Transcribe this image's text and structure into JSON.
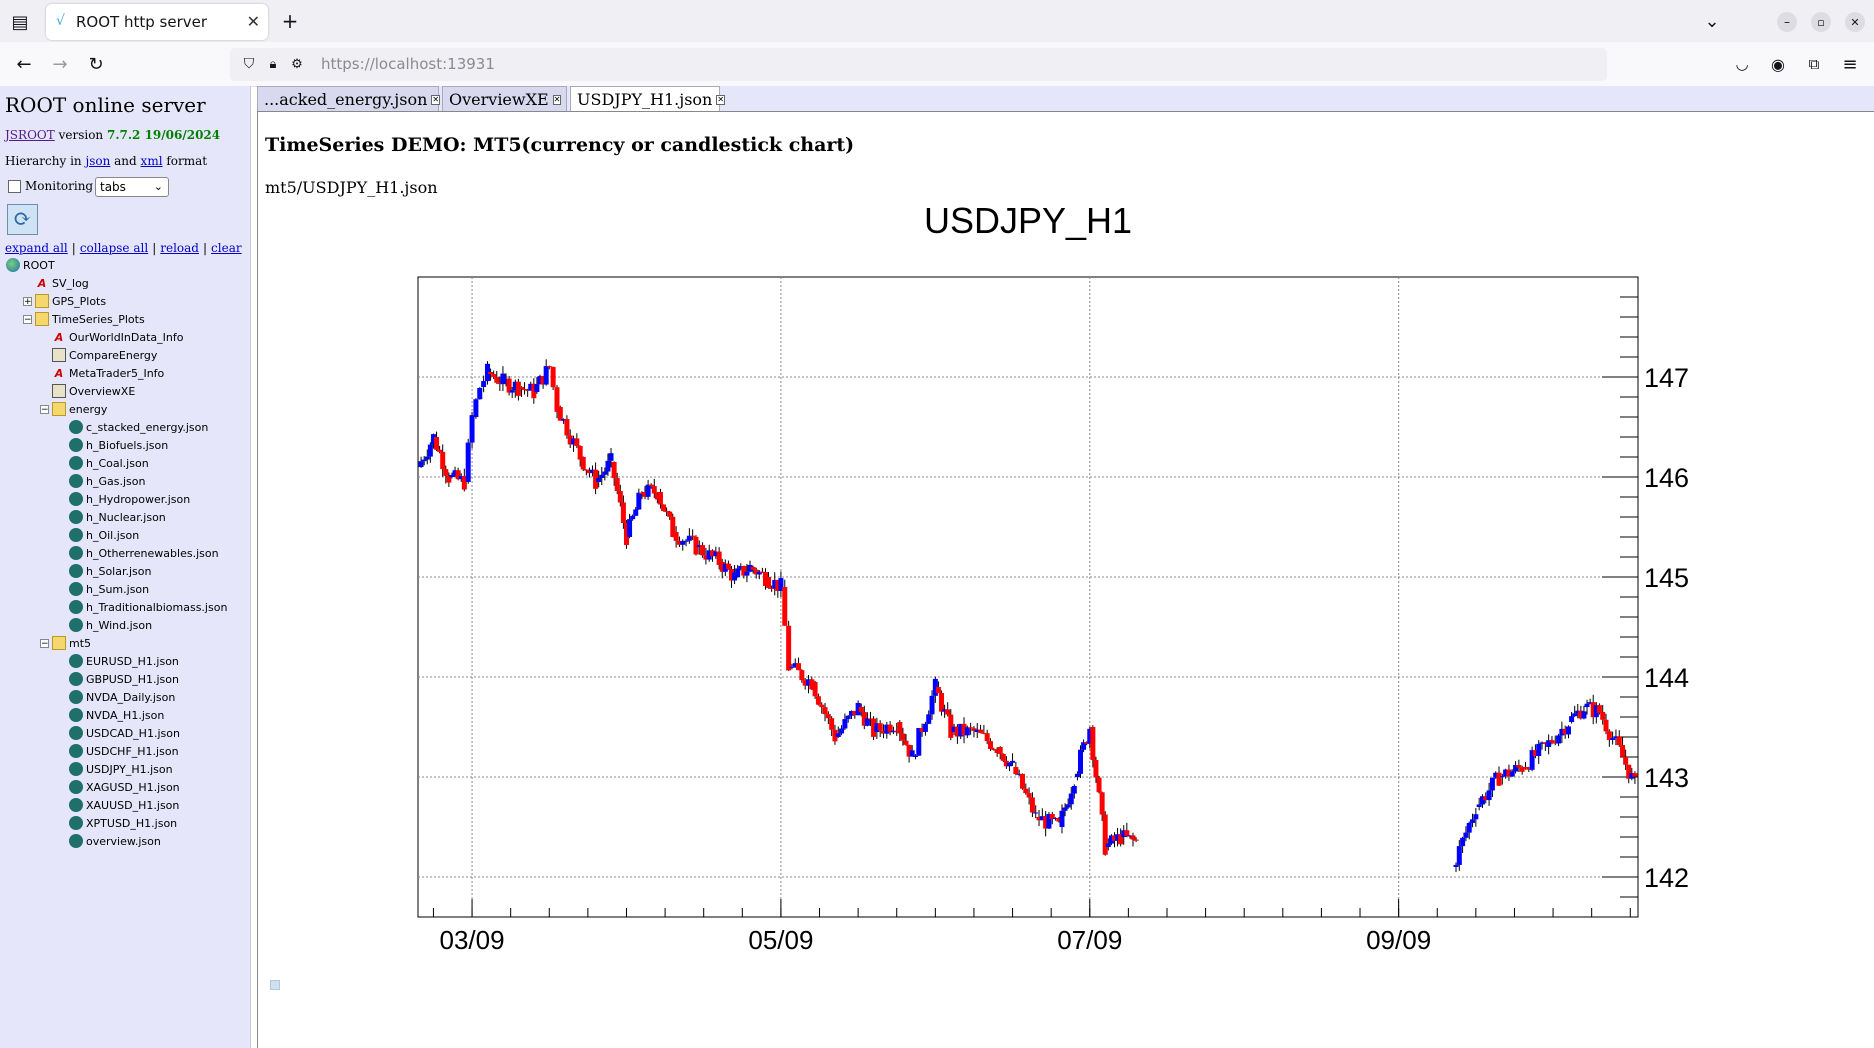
{
  "browser": {
    "tab_title": "ROOT http server",
    "url_host": "https://localhost:",
    "url_port": "13931"
  },
  "left_panel": {
    "title": "ROOT online server",
    "version_link": "JSROOT",
    "version_word": "version",
    "version_value": "7.7.2 19/06/2024",
    "hier_prefix": "Hierarchy in",
    "hier_json": "json",
    "hier_and": "and",
    "hier_xml": "xml",
    "hier_suffix": "format",
    "monitoring_label": "Monitoring",
    "monitoring_mode": "tabs",
    "actions": [
      "expand all",
      "collapse all",
      "reload",
      "clear"
    ],
    "tree": [
      {
        "label": "ROOT",
        "icon": "root-icon",
        "level": 0,
        "pm": ""
      },
      {
        "label": "SV_log",
        "icon": "histogram-icon",
        "level": 1,
        "pm": ""
      },
      {
        "label": "GPS_Plots",
        "icon": "folder-icon",
        "level": 1,
        "pm": "+"
      },
      {
        "label": "TimeSeries_Plots",
        "icon": "folder-icon",
        "level": 1,
        "pm": "-"
      },
      {
        "label": "OurWorldInData_Info",
        "icon": "histogram-icon",
        "level": 2,
        "pm": ""
      },
      {
        "label": "CompareEnergy",
        "icon": "canvas-icon",
        "level": 2,
        "pm": ""
      },
      {
        "label": "MetaTrader5_Info",
        "icon": "histogram-icon",
        "level": 2,
        "pm": ""
      },
      {
        "label": "OverviewXE",
        "icon": "canvas-icon",
        "level": 2,
        "pm": ""
      },
      {
        "label": "energy",
        "icon": "folder-icon",
        "level": 2,
        "pm": "-"
      },
      {
        "label": "c_stacked_energy.json",
        "icon": "json-icon",
        "level": 3,
        "pm": ""
      },
      {
        "label": "h_Biofuels.json",
        "icon": "json-icon",
        "level": 3,
        "pm": ""
      },
      {
        "label": "h_Coal.json",
        "icon": "json-icon",
        "level": 3,
        "pm": ""
      },
      {
        "label": "h_Gas.json",
        "icon": "json-icon",
        "level": 3,
        "pm": ""
      },
      {
        "label": "h_Hydropower.json",
        "icon": "json-icon",
        "level": 3,
        "pm": ""
      },
      {
        "label": "h_Nuclear.json",
        "icon": "json-icon",
        "level": 3,
        "pm": ""
      },
      {
        "label": "h_Oil.json",
        "icon": "json-icon",
        "level": 3,
        "pm": ""
      },
      {
        "label": "h_Otherrenewables.json",
        "icon": "json-icon",
        "level": 3,
        "pm": ""
      },
      {
        "label": "h_Solar.json",
        "icon": "json-icon",
        "level": 3,
        "pm": ""
      },
      {
        "label": "h_Sum.json",
        "icon": "json-icon",
        "level": 3,
        "pm": ""
      },
      {
        "label": "h_Traditionalbiomass.json",
        "icon": "json-icon",
        "level": 3,
        "pm": ""
      },
      {
        "label": "h_Wind.json",
        "icon": "json-icon",
        "level": 3,
        "pm": ""
      },
      {
        "label": "mt5",
        "icon": "folder-icon",
        "level": 2,
        "pm": "-"
      },
      {
        "label": "EURUSD_H1.json",
        "icon": "json-icon",
        "level": 3,
        "pm": ""
      },
      {
        "label": "GBPUSD_H1.json",
        "icon": "json-icon",
        "level": 3,
        "pm": ""
      },
      {
        "label": "NVDA_Daily.json",
        "icon": "json-icon",
        "level": 3,
        "pm": ""
      },
      {
        "label": "NVDA_H1.json",
        "icon": "json-icon",
        "level": 3,
        "pm": ""
      },
      {
        "label": "USDCAD_H1.json",
        "icon": "json-icon",
        "level": 3,
        "pm": ""
      },
      {
        "label": "USDCHF_H1.json",
        "icon": "json-icon",
        "level": 3,
        "pm": ""
      },
      {
        "label": "USDJPY_H1.json",
        "icon": "json-icon",
        "level": 3,
        "pm": ""
      },
      {
        "label": "XAGUSD_H1.json",
        "icon": "json-icon",
        "level": 3,
        "pm": ""
      },
      {
        "label": "XAUUSD_H1.json",
        "icon": "json-icon",
        "level": 3,
        "pm": ""
      },
      {
        "label": "XPTUSD_H1.json",
        "icon": "json-icon",
        "level": 3,
        "pm": ""
      },
      {
        "label": "overview.json",
        "icon": "json-icon",
        "level": 3,
        "pm": ""
      }
    ]
  },
  "main_tabs": [
    {
      "label": "...acked_energy.json",
      "active": false
    },
    {
      "label": "OverviewXE",
      "active": false
    },
    {
      "label": "USDJPY_H1.json",
      "active": true
    }
  ],
  "demo_title": "TimeSeries DEMO: MT5(currency or candlestick chart)",
  "demo_path": "mt5/USDJPY_H1.json",
  "colors": {
    "up_candle": "#0000ff",
    "down_candle": "#ff0000"
  },
  "chart_data": {
    "type": "candlestick",
    "title": "USDJPY_H1",
    "x_tick_labels": [
      "03/09",
      "05/09",
      "07/09",
      "09/09"
    ],
    "y_tick_labels": [
      142,
      143,
      144,
      145,
      146,
      147
    ],
    "ylim": [
      141.6,
      148.0
    ],
    "xlim_days": [
      2.65,
      10.55
    ],
    "y_axis_side": "right",
    "grid": true,
    "series_close": [
      [
        2.65,
        146.1
      ],
      [
        2.75,
        146.4
      ],
      [
        2.85,
        146.0
      ],
      [
        2.95,
        145.95
      ],
      [
        3.0,
        146.6
      ],
      [
        3.05,
        146.9
      ],
      [
        3.1,
        147.05
      ],
      [
        3.2,
        146.95
      ],
      [
        3.3,
        146.9
      ],
      [
        3.4,
        146.85
      ],
      [
        3.5,
        147.1
      ],
      [
        3.55,
        146.7
      ],
      [
        3.7,
        146.2
      ],
      [
        3.8,
        145.95
      ],
      [
        3.9,
        146.15
      ],
      [
        4.0,
        145.4
      ],
      [
        4.1,
        145.85
      ],
      [
        4.2,
        145.85
      ],
      [
        4.3,
        145.45
      ],
      [
        4.45,
        145.3
      ],
      [
        4.6,
        145.15
      ],
      [
        4.7,
        145.0
      ],
      [
        4.8,
        145.1
      ],
      [
        4.9,
        145.0
      ],
      [
        5.0,
        144.9
      ],
      [
        5.05,
        144.1
      ],
      [
        5.2,
        143.95
      ],
      [
        5.35,
        143.4
      ],
      [
        5.5,
        143.7
      ],
      [
        5.6,
        143.45
      ],
      [
        5.75,
        143.55
      ],
      [
        5.85,
        143.2
      ],
      [
        6.0,
        143.9
      ],
      [
        6.1,
        143.45
      ],
      [
        6.25,
        143.45
      ],
      [
        6.4,
        143.3
      ],
      [
        6.5,
        143.1
      ],
      [
        6.65,
        142.6
      ],
      [
        6.8,
        142.5
      ],
      [
        6.9,
        143.0
      ],
      [
        7.0,
        143.5
      ],
      [
        7.1,
        142.3
      ],
      [
        7.2,
        142.4
      ],
      [
        7.3,
        142.35
      ],
      [
        9.35,
        142.1
      ],
      [
        9.5,
        142.7
      ],
      [
        9.65,
        143.0
      ],
      [
        9.8,
        143.1
      ],
      [
        9.95,
        143.3
      ],
      [
        10.1,
        143.55
      ],
      [
        10.2,
        143.7
      ],
      [
        10.3,
        143.65
      ],
      [
        10.45,
        143.2
      ],
      [
        10.55,
        142.85
      ]
    ]
  }
}
